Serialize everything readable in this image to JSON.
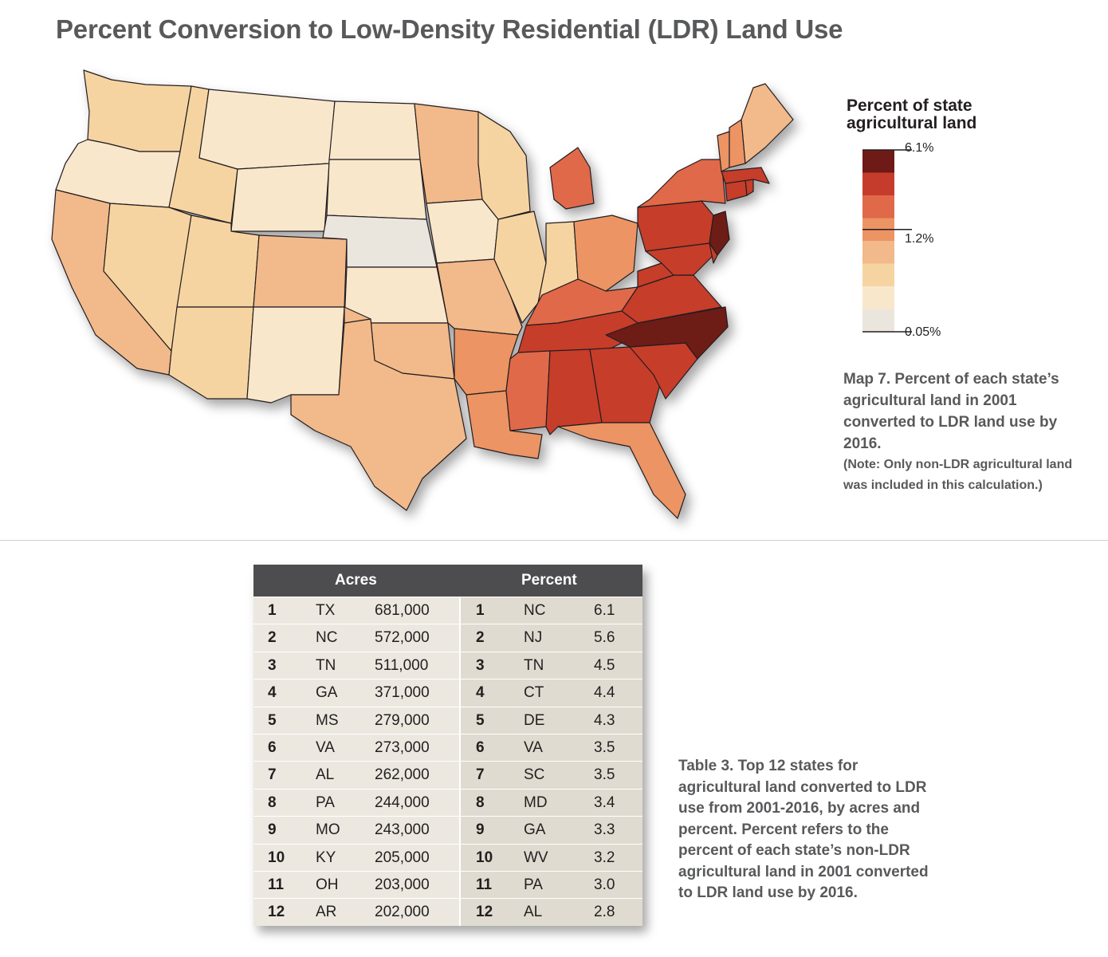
{
  "title": "Percent Conversion to Low-Density Residential (LDR) Land Use",
  "legend": {
    "title_line1": "Percent of state",
    "title_line2": "agricultural land",
    "tick_max": "6.1%",
    "tick_mid": "1.2%",
    "tick_min": "0.05%",
    "colors": [
      "#6e1a16",
      "#c63c2c",
      "#e0694a",
      "#ec9463",
      "#f2b98a",
      "#f6d4a1",
      "#f9e7cb",
      "#ebe6dd"
    ]
  },
  "map_caption": {
    "lead": "Map 7.",
    "body": "Percent of each state’s agricultural land in 2001 converted to LDR land use by 2016.",
    "note": "(Note: Only non-LDR agricultural land was included in this calculation.)"
  },
  "table": {
    "header_acres": "Acres",
    "header_percent": "Percent",
    "rows": [
      {
        "rank": "1",
        "a_state": "TX",
        "acres": "681,000",
        "p_rank": "1",
        "p_state": "NC",
        "pct": "6.1"
      },
      {
        "rank": "2",
        "a_state": "NC",
        "acres": "572,000",
        "p_rank": "2",
        "p_state": "NJ",
        "pct": "5.6"
      },
      {
        "rank": "3",
        "a_state": "TN",
        "acres": "511,000",
        "p_rank": "3",
        "p_state": "TN",
        "pct": "4.5"
      },
      {
        "rank": "4",
        "a_state": "GA",
        "acres": "371,000",
        "p_rank": "4",
        "p_state": "CT",
        "pct": "4.4"
      },
      {
        "rank": "5",
        "a_state": "MS",
        "acres": "279,000",
        "p_rank": "5",
        "p_state": "DE",
        "pct": "4.3"
      },
      {
        "rank": "6",
        "a_state": "VA",
        "acres": "273,000",
        "p_rank": "6",
        "p_state": "VA",
        "pct": "3.5"
      },
      {
        "rank": "7",
        "a_state": "AL",
        "acres": "262,000",
        "p_rank": "7",
        "p_state": "SC",
        "pct": "3.5"
      },
      {
        "rank": "8",
        "a_state": "PA",
        "acres": "244,000",
        "p_rank": "8",
        "p_state": "MD",
        "pct": "3.4"
      },
      {
        "rank": "9",
        "a_state": "MO",
        "acres": "243,000",
        "p_rank": "9",
        "p_state": "GA",
        "pct": "3.3"
      },
      {
        "rank": "10",
        "a_state": "KY",
        "acres": "205,000",
        "p_rank": "10",
        "p_state": "WV",
        "pct": "3.2"
      },
      {
        "rank": "11",
        "a_state": "OH",
        "acres": "203,000",
        "p_rank": "11",
        "p_state": "PA",
        "pct": "3.0"
      },
      {
        "rank": "12",
        "a_state": "AR",
        "acres": "202,000",
        "p_rank": "12",
        "p_state": "AL",
        "pct": "2.8"
      }
    ]
  },
  "table_caption": {
    "lead": "Table 3.",
    "body": "Top 12 states for agricultural land converted to LDR use from 2001-2016, by acres and percent. Percent refers to the percent of each state’s non-LDR agricultural land in 2001 converted to LDR land use by 2016."
  }
}
